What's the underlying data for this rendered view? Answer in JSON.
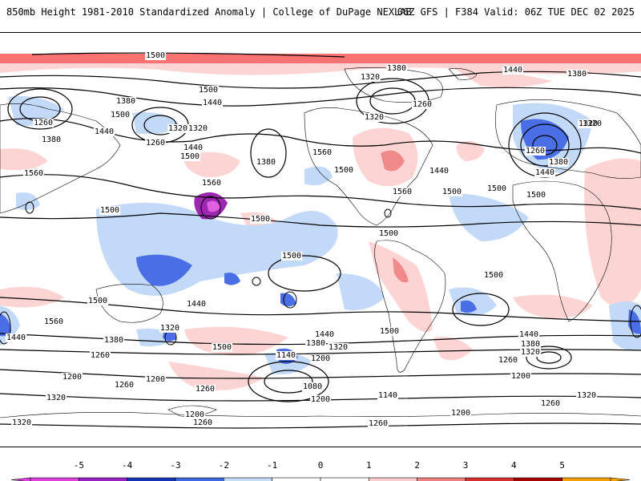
{
  "header": {
    "left": "850mb Height 1981-2010 Standardized Anomaly | College of DuPage NEXLAB",
    "right": "06Z GFS | F384 Valid: 06Z TUE DEC 02 2025"
  },
  "map": {
    "contour_labels": [
      "1500",
      "1380",
      "1440",
      "1380",
      "1320",
      "1260",
      "1320",
      "1500",
      "1440",
      "1380",
      "1260",
      "1320",
      "1500",
      "1440",
      "1380",
      "1260",
      "1320",
      "1260",
      "1440",
      "1380",
      "1380",
      "1440",
      "1500",
      "1500",
      "1560",
      "1440",
      "1500",
      "1560",
      "1500",
      "1500",
      "1500",
      "1500",
      "1500",
      "1500",
      "1560",
      "1500",
      "1440",
      "1320",
      "1500",
      "1440",
      "1380",
      "1320",
      "1260",
      "1200",
      "1140",
      "1080",
      "1200",
      "1320",
      "1260",
      "1200",
      "1260",
      "1200",
      "1140",
      "1200",
      "1320",
      "1260",
      "1320",
      "1200",
      "1260",
      "1440",
      "1380",
      "1320",
      "1260",
      "1200",
      "1440",
      "1560",
      "1500",
      "1500",
      "1380",
      "1320",
      "1320",
      "1260",
      "1560"
    ],
    "anomaly_palette": {
      "neg5": "#e060e0",
      "neg4": "#9c27b0",
      "neg3": "#1e40c0",
      "neg2": "#4a6ee6",
      "neg1": "#c2d9f8",
      "pos1": "#fdd4d4",
      "pos2": "#f08a8a",
      "pos3": "#e04040",
      "pos4": "#b80000",
      "pos5": "#f5a623"
    }
  },
  "colorbar": {
    "labels": [
      "-5",
      "-4",
      "-3",
      "-2",
      "-1",
      "0",
      "1",
      "2",
      "3",
      "4",
      "5"
    ],
    "colors": [
      "#e040e0",
      "#9a20c8",
      "#1834b8",
      "#3e68e0",
      "#c6dcf7",
      "#ffffff",
      "#ffffff",
      "#fccece",
      "#ee8080",
      "#d83030",
      "#a80000",
      "#f5a000"
    ]
  }
}
